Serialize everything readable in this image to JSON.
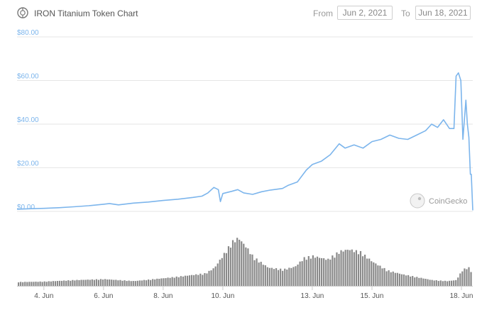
{
  "header": {
    "title": "IRON Titanium Token Chart",
    "from_label": "From",
    "from_value": "Jun 2, 2021",
    "to_label": "To",
    "to_value": "Jun 18, 2021"
  },
  "watermark": "CoinGecko",
  "colors": {
    "line": "#7cb5ec",
    "volume": "#8a8a8a",
    "grid": "#e6e6e6"
  },
  "chart_data": {
    "type": "line",
    "title": "IRON Titanium Token Chart",
    "y_ticks": [
      "$0.00",
      "$20.00",
      "$40.00",
      "$60.00",
      "$80.00"
    ],
    "x_ticks": [
      "4. Jun",
      "6. Jun",
      "8. Jun",
      "10. Jun",
      "13. Jun",
      "15. Jun",
      "18. Jun"
    ],
    "x_tick_days": [
      4,
      6,
      8,
      10,
      13,
      15,
      18
    ],
    "ylim": [
      0,
      80
    ],
    "xlim_days": [
      3.1,
      18.3
    ],
    "grid": true,
    "series": [
      {
        "values": [
          [
            3.1,
            1.0
          ],
          [
            3.5,
            1.2
          ],
          [
            4.0,
            1.4
          ],
          [
            4.5,
            1.7
          ],
          [
            5.0,
            2.1
          ],
          [
            5.5,
            2.6
          ],
          [
            6.0,
            3.3
          ],
          [
            6.2,
            3.6
          ],
          [
            6.5,
            3.0
          ],
          [
            7.0,
            3.8
          ],
          [
            7.5,
            4.3
          ],
          [
            8.0,
            5.0
          ],
          [
            8.5,
            5.6
          ],
          [
            9.0,
            6.4
          ],
          [
            9.3,
            7.0
          ],
          [
            9.5,
            8.5
          ],
          [
            9.7,
            11.0
          ],
          [
            9.85,
            10.0
          ],
          [
            9.92,
            4.5
          ],
          [
            10.0,
            8.2
          ],
          [
            10.3,
            9.2
          ],
          [
            10.5,
            10.0
          ],
          [
            10.7,
            8.5
          ],
          [
            11.0,
            7.8
          ],
          [
            11.3,
            9.0
          ],
          [
            11.6,
            9.8
          ],
          [
            12.0,
            10.5
          ],
          [
            12.2,
            12.0
          ],
          [
            12.5,
            13.5
          ],
          [
            12.8,
            19.0
          ],
          [
            13.0,
            21.5
          ],
          [
            13.3,
            23.0
          ],
          [
            13.6,
            26.0
          ],
          [
            13.9,
            31.0
          ],
          [
            14.1,
            29.0
          ],
          [
            14.4,
            30.5
          ],
          [
            14.7,
            29.0
          ],
          [
            15.0,
            32.0
          ],
          [
            15.3,
            33.0
          ],
          [
            15.6,
            35.0
          ],
          [
            15.9,
            33.5
          ],
          [
            16.2,
            33.0
          ],
          [
            16.5,
            35.0
          ],
          [
            16.8,
            37.0
          ],
          [
            17.0,
            40.0
          ],
          [
            17.2,
            38.5
          ],
          [
            17.4,
            42.0
          ],
          [
            17.6,
            38.0
          ],
          [
            17.75,
            38.0
          ],
          [
            17.82,
            62.0
          ],
          [
            17.9,
            63.5
          ],
          [
            17.98,
            60.0
          ],
          [
            18.05,
            33.0
          ],
          [
            18.1,
            42.0
          ],
          [
            18.15,
            51.0
          ],
          [
            18.2,
            40.0
          ],
          [
            18.25,
            34.0
          ],
          [
            18.3,
            17.0
          ],
          [
            18.33,
            17.0
          ],
          [
            18.38,
            0.5
          ]
        ]
      }
    ],
    "volume_relative": [
      [
        3.1,
        0.08
      ],
      [
        4.0,
        0.09
      ],
      [
        5.0,
        0.12
      ],
      [
        6.0,
        0.14
      ],
      [
        7.0,
        0.1
      ],
      [
        8.0,
        0.16
      ],
      [
        8.6,
        0.2
      ],
      [
        9.0,
        0.23
      ],
      [
        9.4,
        0.26
      ],
      [
        9.7,
        0.38
      ],
      [
        10.0,
        0.65
      ],
      [
        10.3,
        0.92
      ],
      [
        10.5,
        1.0
      ],
      [
        10.8,
        0.78
      ],
      [
        11.0,
        0.6
      ],
      [
        11.5,
        0.38
      ],
      [
        12.0,
        0.34
      ],
      [
        12.4,
        0.4
      ],
      [
        12.7,
        0.58
      ],
      [
        13.0,
        0.62
      ],
      [
        13.5,
        0.55
      ],
      [
        13.9,
        0.72
      ],
      [
        14.2,
        0.76
      ],
      [
        14.6,
        0.7
      ],
      [
        15.0,
        0.5
      ],
      [
        15.5,
        0.32
      ],
      [
        16.0,
        0.24
      ],
      [
        16.5,
        0.18
      ],
      [
        17.0,
        0.12
      ],
      [
        17.5,
        0.1
      ],
      [
        17.8,
        0.12
      ],
      [
        18.0,
        0.32
      ],
      [
        18.2,
        0.4
      ],
      [
        18.38,
        0.22
      ]
    ]
  }
}
